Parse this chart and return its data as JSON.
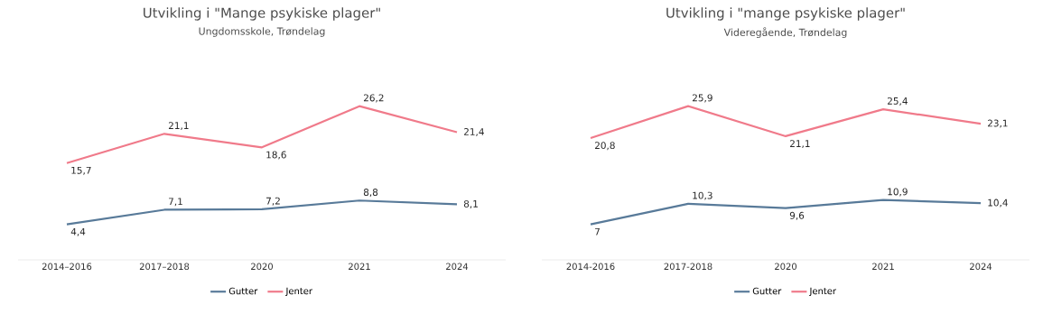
{
  "chart_data": [
    {
      "type": "line",
      "title": "Utvikling i \"Mange psykiske plager\"",
      "subtitle": "Ungdomsskole, Trøndelag",
      "categories": [
        "2014–2016",
        "2017–2018",
        "2020",
        "2021",
        "2024"
      ],
      "legend": "bottom",
      "tick_labels": "x",
      "series": [
        {
          "name": "Gutter",
          "color": "#587a99",
          "values": [
            4.4,
            7.1,
            7.2,
            8.8,
            8.1
          ],
          "value_labels": [
            "4,4",
            "7,1",
            "7,2",
            "8,8",
            "8,1"
          ]
        },
        {
          "name": "Jenter",
          "color": "#f07a8a",
          "values": [
            15.7,
            21.1,
            18.6,
            26.2,
            21.4
          ],
          "value_labels": [
            "15,7",
            "21,1",
            "18,6",
            "26,2",
            "21,4"
          ]
        }
      ]
    },
    {
      "type": "line",
      "title": "Utvikling i \"mange psykiske plager\"",
      "subtitle": "Videregående, Trøndelag",
      "categories": [
        "2014-2016",
        "2017-2018",
        "2020",
        "2021",
        "2024"
      ],
      "legend": "bottom",
      "tick_labels": "x",
      "series": [
        {
          "name": "Gutter",
          "color": "#587a99",
          "values": [
            7,
            10.3,
            9.6,
            10.9,
            10.4
          ],
          "value_labels": [
            "7",
            "10,3",
            "9,6",
            "10,9",
            "10,4"
          ]
        },
        {
          "name": "Jenter",
          "color": "#f07a8a",
          "values": [
            20.8,
            25.9,
            21.1,
            25.4,
            23.1
          ],
          "value_labels": [
            "20,8",
            "25,9",
            "21,1",
            "25,4",
            "23,1"
          ]
        }
      ]
    }
  ]
}
